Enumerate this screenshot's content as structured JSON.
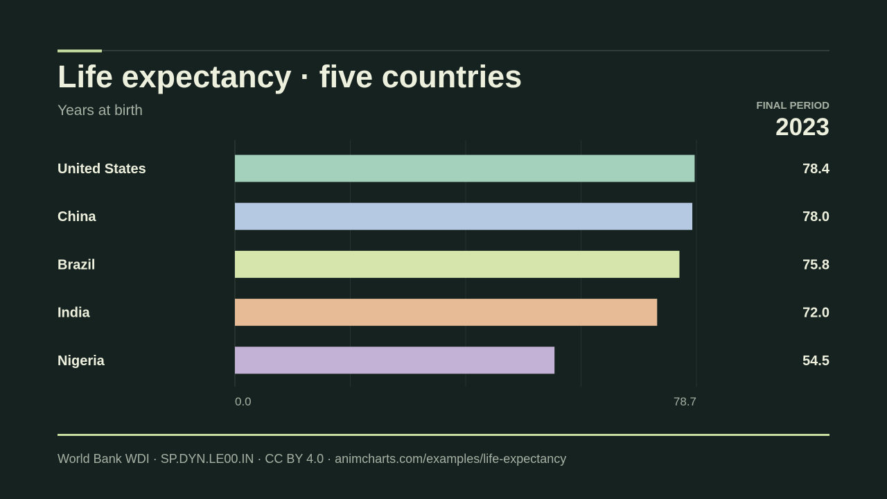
{
  "header": {
    "title": "Life expectancy · five countries",
    "subtitle": "Years at birth",
    "period_label": "FINAL PERIOD",
    "period_value": "2023"
  },
  "footer": {
    "source": "World Bank WDI · SP.DYN.LE00.IN · CC BY 4.0 · animcharts.com/examples/life-expectancy"
  },
  "colors": {
    "background": "#16221f",
    "accent": "#c6dea0",
    "text": "#eef0de",
    "muted": "#a6b0a4",
    "grid": "#26332f"
  },
  "chart_data": {
    "type": "bar",
    "orientation": "horizontal",
    "title": "Life expectancy · five countries",
    "subtitle": "Years at birth",
    "xlim": [
      0,
      78.7
    ],
    "x_tick_labels": [
      "0.0",
      "78.7"
    ],
    "grid": true,
    "categories": [
      "United States",
      "China",
      "Brazil",
      "India",
      "Nigeria"
    ],
    "values": [
      78.4,
      78.0,
      75.8,
      72.0,
      54.5
    ],
    "value_labels": [
      "78.4",
      "78.0",
      "75.8",
      "72.0",
      "54.5"
    ],
    "bar_colors": [
      "#a3d1bb",
      "#b5cae2",
      "#d5e5ac",
      "#e7bb96",
      "#c4b1d6"
    ]
  }
}
